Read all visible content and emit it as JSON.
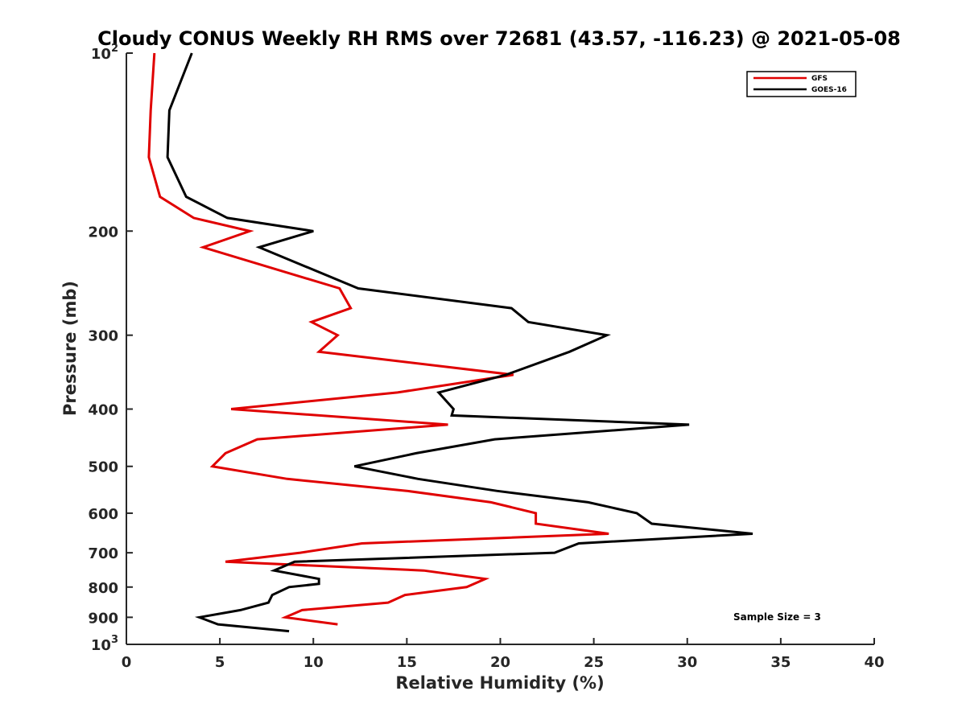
{
  "chart_data": {
    "type": "line",
    "title": "Cloudy CONUS Weekly RH RMS over 72681 (43.57, -116.23) @ 2021-05-08",
    "xlabel": "Relative Humidity (%)",
    "ylabel": "Pressure (mb)",
    "xlim": [
      0,
      40
    ],
    "ylim": [
      100,
      1000
    ],
    "y_scale": "log",
    "y_reversed": true,
    "x_ticks": [
      "0",
      "5",
      "10",
      "15",
      "20",
      "25",
      "30",
      "35",
      "40"
    ],
    "y_ticks": [
      {
        "value": 100,
        "base": "10",
        "exp": "2"
      },
      {
        "value": 200,
        "label": "200"
      },
      {
        "value": 300,
        "label": "300"
      },
      {
        "value": 400,
        "label": "400"
      },
      {
        "value": 500,
        "label": "500"
      },
      {
        "value": 600,
        "label": "600"
      },
      {
        "value": 700,
        "label": "700"
      },
      {
        "value": 800,
        "label": "800"
      },
      {
        "value": 900,
        "label": "900"
      },
      {
        "value": 1000,
        "base": "10",
        "exp": "3"
      }
    ],
    "grid": false,
    "legend_position": "top-right",
    "annotation": "Sample Size = 3",
    "series": [
      {
        "name": "GFS",
        "color": "#e00000",
        "points": [
          [
            1.5,
            100
          ],
          [
            1.3,
            125
          ],
          [
            1.2,
            150
          ],
          [
            1.8,
            175
          ],
          [
            3.6,
            190
          ],
          [
            6.6,
            200
          ],
          [
            4.1,
            213
          ],
          [
            11.4,
            250
          ],
          [
            12.0,
            270
          ],
          [
            9.9,
            285
          ],
          [
            11.3,
            300
          ],
          [
            10.3,
            320
          ],
          [
            20.7,
            350
          ],
          [
            14.5,
            375
          ],
          [
            5.6,
            400
          ],
          [
            17.2,
            425
          ],
          [
            7.0,
            450
          ],
          [
            5.3,
            475
          ],
          [
            4.6,
            500
          ],
          [
            8.6,
            525
          ],
          [
            15.0,
            550
          ],
          [
            19.5,
            575
          ],
          [
            21.9,
            600
          ],
          [
            21.9,
            625
          ],
          [
            25.8,
            650
          ],
          [
            12.6,
            675
          ],
          [
            9.3,
            700
          ],
          [
            5.3,
            725
          ],
          [
            15.9,
            750
          ],
          [
            19.2,
            775
          ],
          [
            18.2,
            800
          ],
          [
            14.9,
            825
          ],
          [
            14.0,
            850
          ],
          [
            9.4,
            875
          ],
          [
            8.5,
            900
          ],
          [
            11.3,
            925
          ]
        ]
      },
      {
        "name": "GOES-16",
        "color": "#000000",
        "points": [
          [
            3.5,
            100
          ],
          [
            2.3,
            125
          ],
          [
            2.2,
            150
          ],
          [
            3.2,
            175
          ],
          [
            5.4,
            190
          ],
          [
            10.0,
            200
          ],
          [
            7.1,
            213
          ],
          [
            12.4,
            250
          ],
          [
            20.6,
            270
          ],
          [
            21.5,
            285
          ],
          [
            25.7,
            300
          ],
          [
            23.7,
            320
          ],
          [
            20.3,
            350
          ],
          [
            16.7,
            375
          ],
          [
            17.5,
            400
          ],
          [
            17.4,
            410
          ],
          [
            30.1,
            425
          ],
          [
            19.7,
            450
          ],
          [
            15.5,
            475
          ],
          [
            12.2,
            500
          ],
          [
            15.6,
            525
          ],
          [
            19.8,
            550
          ],
          [
            24.7,
            575
          ],
          [
            27.3,
            600
          ],
          [
            28.1,
            625
          ],
          [
            33.5,
            650
          ],
          [
            24.2,
            675
          ],
          [
            22.9,
            700
          ],
          [
            9.0,
            725
          ],
          [
            7.9,
            750
          ],
          [
            10.3,
            775
          ],
          [
            10.3,
            790
          ],
          [
            8.7,
            800
          ],
          [
            7.8,
            825
          ],
          [
            7.6,
            850
          ],
          [
            6.1,
            875
          ],
          [
            3.9,
            900
          ],
          [
            4.9,
            925
          ],
          [
            8.7,
            950
          ]
        ]
      }
    ]
  }
}
